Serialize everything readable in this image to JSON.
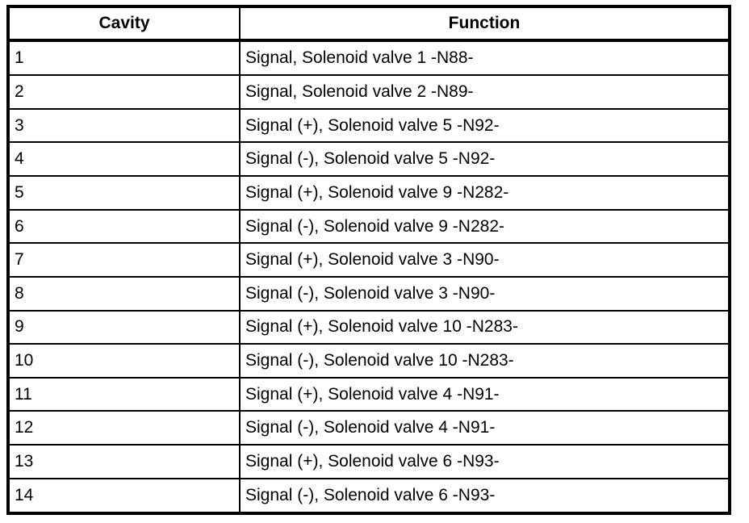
{
  "table": {
    "headers": {
      "cavity": "Cavity",
      "function": "Function"
    },
    "rows": [
      {
        "cavity": "1",
        "function": "Signal, Solenoid valve 1 -N88-"
      },
      {
        "cavity": "2",
        "function": "Signal, Solenoid valve 2 -N89-"
      },
      {
        "cavity": "3",
        "function": "Signal (+), Solenoid valve 5 -N92-"
      },
      {
        "cavity": "4",
        "function": "Signal (-), Solenoid valve 5 -N92-"
      },
      {
        "cavity": "5",
        "function": "Signal (+), Solenoid valve 9 -N282-"
      },
      {
        "cavity": "6",
        "function": "Signal (-), Solenoid valve 9 -N282-"
      },
      {
        "cavity": "7",
        "function": "Signal (+), Solenoid valve 3 -N90-"
      },
      {
        "cavity": "8",
        "function": "Signal (-), Solenoid valve 3 -N90-"
      },
      {
        "cavity": "9",
        "function": "Signal (+), Solenoid valve 10 -N283-"
      },
      {
        "cavity": "10",
        "function": "Signal (-), Solenoid valve 10 -N283-"
      },
      {
        "cavity": "11",
        "function": "Signal (+), Solenoid valve 4 -N91-"
      },
      {
        "cavity": "12",
        "function": "Signal (-), Solenoid valve 4 -N91-"
      },
      {
        "cavity": "13",
        "function": "Signal (+), Solenoid valve 6 -N93-"
      },
      {
        "cavity": "14",
        "function": "Signal (-), Solenoid valve 6 -N93-"
      }
    ],
    "colors": {
      "border": "#000000",
      "text": "#000000",
      "background": "#ffffff"
    }
  }
}
